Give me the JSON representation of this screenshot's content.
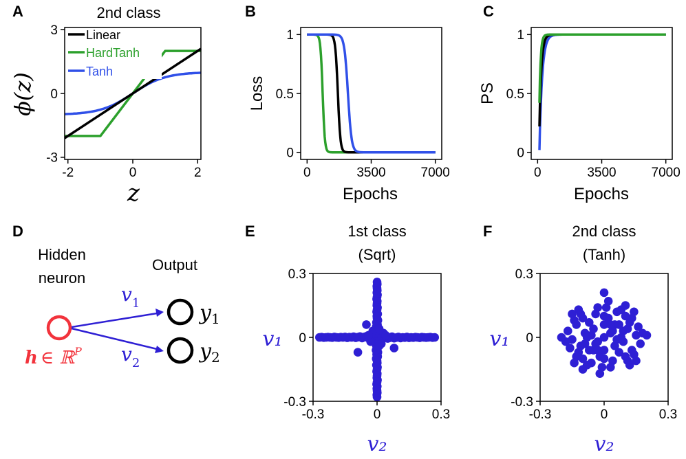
{
  "colors": {
    "linear": "#000000",
    "hardtanh": "#2ca02c",
    "tanh": "#3050e8",
    "points": "#2e1fd4",
    "hidden": "#f2333c",
    "math_blue": "#2e1fd4"
  },
  "chart_data": [
    {
      "panel": "A",
      "type": "line",
      "title": "2nd class",
      "xlabel": "z",
      "ylabel": "ϕ(z)",
      "xlim": [
        -2.1,
        2.1
      ],
      "ylim": [
        -3.1,
        3.1
      ],
      "xticks": [
        -2,
        0,
        2
      ],
      "yticks": [
        -3,
        0,
        3
      ],
      "xtick_labels": [
        "-2",
        "0",
        "2"
      ],
      "ytick_labels": [
        "-3",
        "0",
        "3"
      ],
      "legend": [
        "Linear",
        "HardTanh",
        "Tanh"
      ],
      "series": [
        {
          "name": "Linear",
          "x": [
            -2.1,
            2.1
          ],
          "y": [
            -2.1,
            2.1
          ]
        },
        {
          "name": "HardTanh",
          "x": [
            -2.1,
            -1,
            1,
            2.1
          ],
          "y": [
            -2,
            -2,
            2,
            2
          ]
        },
        {
          "name": "Tanh",
          "function": "tanh",
          "x_range": [
            -2.1,
            2.1
          ]
        }
      ]
    },
    {
      "panel": "B",
      "type": "line",
      "title": "",
      "xlabel": "Epochs",
      "ylabel": "Loss",
      "xlim": [
        -350,
        7350
      ],
      "ylim": [
        -0.06,
        1.06
      ],
      "xticks": [
        0,
        3500,
        7000
      ],
      "yticks": [
        0,
        0.5,
        1
      ],
      "xtick_labels": [
        "0",
        "3500",
        "7000"
      ],
      "ytick_labels": [
        "0",
        "0.5",
        "1"
      ],
      "series": [
        {
          "name": "HardTanh",
          "midpoint": 850,
          "width": 60,
          "x_range": [
            0,
            7000
          ]
        },
        {
          "name": "Linear",
          "midpoint": 1680,
          "width": 70,
          "x_range": [
            0,
            7000
          ]
        },
        {
          "name": "Tanh",
          "midpoint": 2230,
          "width": 100,
          "x_range": [
            0,
            7000
          ]
        }
      ]
    },
    {
      "panel": "C",
      "type": "line",
      "title": "",
      "xlabel": "Epochs",
      "ylabel": "PS",
      "xlim": [
        -350,
        7350
      ],
      "ylim": [
        -0.06,
        1.06
      ],
      "xticks": [
        0,
        3500,
        7000
      ],
      "yticks": [
        0,
        0.5,
        1
      ],
      "xtick_labels": [
        "0",
        "3500",
        "7000"
      ],
      "ytick_labels": [
        "0",
        "0.5",
        "1"
      ],
      "series": [
        {
          "name": "HardTanh",
          "start": 0.42,
          "tau": 70,
          "x_range": [
            100,
            7000
          ]
        },
        {
          "name": "Linear",
          "start": 0.22,
          "tau": 110,
          "x_range": [
            100,
            7000
          ]
        },
        {
          "name": "Tanh",
          "start": 0.02,
          "tau": 150,
          "x_range": [
            100,
            7000
          ]
        }
      ]
    },
    {
      "panel": "E",
      "type": "scatter",
      "title": "1st class",
      "subtitle": "(Sqrt)",
      "xlabel": "v₂",
      "ylabel": "v₁",
      "xlim": [
        -0.3,
        0.3
      ],
      "ylim": [
        -0.3,
        0.3
      ],
      "xticks": [
        -0.3,
        0,
        0.3
      ],
      "yticks": [
        -0.3,
        0,
        0.3
      ],
      "xtick_labels": [
        "-0.3",
        "0",
        "0.3"
      ],
      "ytick_labels": [
        "-0.3",
        "0",
        "0.3"
      ],
      "pattern": "cross",
      "points": [
        [
          -0.27,
          0.0
        ],
        [
          -0.26,
          0.001
        ],
        [
          -0.25,
          -0.001
        ],
        [
          -0.24,
          0.0
        ],
        [
          -0.23,
          0.001
        ],
        [
          -0.22,
          0.0
        ],
        [
          -0.21,
          -0.001
        ],
        [
          -0.2,
          0.002
        ],
        [
          -0.19,
          0.0
        ],
        [
          -0.18,
          -0.001
        ],
        [
          -0.17,
          0.001
        ],
        [
          -0.16,
          0.0
        ],
        [
          -0.15,
          0.002
        ],
        [
          -0.14,
          -0.002
        ],
        [
          -0.13,
          0.001
        ],
        [
          -0.12,
          0.0
        ],
        [
          -0.11,
          0.003
        ],
        [
          -0.1,
          -0.002
        ],
        [
          -0.09,
          0.001
        ],
        [
          -0.08,
          0.004
        ],
        [
          -0.07,
          -0.003
        ],
        [
          -0.06,
          0.002
        ],
        [
          -0.05,
          0.005
        ],
        [
          -0.04,
          -0.004
        ],
        [
          -0.03,
          0.003
        ],
        [
          -0.02,
          0.006
        ],
        [
          -0.01,
          -0.005
        ],
        [
          0.27,
          0.0
        ],
        [
          0.26,
          -0.001
        ],
        [
          0.25,
          0.001
        ],
        [
          0.24,
          0.0
        ],
        [
          0.23,
          -0.001
        ],
        [
          0.22,
          0.0
        ],
        [
          0.21,
          0.001
        ],
        [
          0.2,
          -0.002
        ],
        [
          0.19,
          0.0
        ],
        [
          0.18,
          0.001
        ],
        [
          0.17,
          -0.001
        ],
        [
          0.16,
          0.0
        ],
        [
          0.15,
          -0.002
        ],
        [
          0.14,
          0.002
        ],
        [
          0.13,
          -0.001
        ],
        [
          0.12,
          0.0
        ],
        [
          0.11,
          -0.003
        ],
        [
          0.1,
          0.002
        ],
        [
          0.09,
          -0.001
        ],
        [
          0.08,
          -0.004
        ],
        [
          0.07,
          0.003
        ],
        [
          0.06,
          -0.002
        ],
        [
          0.05,
          -0.005
        ],
        [
          0.04,
          0.004
        ],
        [
          0.03,
          -0.003
        ],
        [
          0.02,
          -0.006
        ],
        [
          0.01,
          0.005
        ],
        [
          0.0,
          0.26
        ],
        [
          0.001,
          0.25
        ],
        [
          -0.001,
          0.24
        ],
        [
          0.0,
          0.23
        ],
        [
          0.001,
          0.22
        ],
        [
          -0.001,
          0.21
        ],
        [
          0.002,
          0.2
        ],
        [
          0.0,
          0.19
        ],
        [
          -0.002,
          0.18
        ],
        [
          0.001,
          0.17
        ],
        [
          0.0,
          0.16
        ],
        [
          -0.001,
          0.15
        ],
        [
          0.002,
          0.14
        ],
        [
          0.0,
          0.13
        ],
        [
          -0.002,
          0.12
        ],
        [
          0.003,
          0.11
        ],
        [
          -0.001,
          0.1
        ],
        [
          0.0,
          0.09
        ],
        [
          0.004,
          0.08
        ],
        [
          -0.003,
          0.07
        ],
        [
          0.002,
          0.06
        ],
        [
          -0.004,
          0.05
        ],
        [
          0.005,
          0.04
        ],
        [
          -0.002,
          0.03
        ],
        [
          0.003,
          0.02
        ],
        [
          -0.005,
          0.01
        ],
        [
          0.0,
          -0.28
        ],
        [
          -0.001,
          -0.27
        ],
        [
          0.001,
          -0.26
        ],
        [
          0.0,
          -0.25
        ],
        [
          -0.001,
          -0.24
        ],
        [
          0.001,
          -0.23
        ],
        [
          -0.002,
          -0.22
        ],
        [
          0.0,
          -0.21
        ],
        [
          0.002,
          -0.2
        ],
        [
          -0.001,
          -0.19
        ],
        [
          0.0,
          -0.18
        ],
        [
          0.001,
          -0.17
        ],
        [
          -0.002,
          -0.16
        ],
        [
          0.0,
          -0.15
        ],
        [
          0.002,
          -0.14
        ],
        [
          -0.003,
          -0.13
        ],
        [
          0.001,
          -0.12
        ],
        [
          0.0,
          -0.11
        ],
        [
          -0.004,
          -0.1
        ],
        [
          0.003,
          -0.09
        ],
        [
          -0.002,
          -0.08
        ],
        [
          0.004,
          -0.07
        ],
        [
          -0.005,
          -0.06
        ],
        [
          0.002,
          -0.05
        ],
        [
          -0.003,
          -0.04
        ],
        [
          0.005,
          -0.03
        ],
        [
          -0.004,
          -0.02
        ],
        [
          0.003,
          -0.01
        ],
        [
          0.0,
          0.0
        ],
        [
          0.02,
          0.01
        ],
        [
          -0.02,
          -0.01
        ],
        [
          0.01,
          -0.02
        ],
        [
          -0.01,
          0.02
        ],
        [
          0.03,
          0.02
        ],
        [
          -0.03,
          -0.02
        ],
        [
          0.02,
          -0.03
        ],
        [
          -0.02,
          0.03
        ],
        [
          0.04,
          0.01
        ],
        [
          -0.04,
          0.01
        ],
        [
          0.01,
          0.04
        ],
        [
          0.01,
          -0.04
        ],
        [
          -0.09,
          -0.07
        ],
        [
          0.08,
          -0.05
        ],
        [
          -0.05,
          0.06
        ]
      ]
    },
    {
      "panel": "F",
      "type": "scatter",
      "title": "2nd class",
      "subtitle": "(Tanh)",
      "xlabel": "v₂",
      "ylabel": "v₁",
      "xlim": [
        -0.3,
        0.3
      ],
      "ylim": [
        -0.3,
        0.3
      ],
      "xticks": [
        -0.3,
        0,
        0.3
      ],
      "yticks": [
        -0.3,
        0,
        0.3
      ],
      "xtick_labels": [
        "-0.3",
        "0",
        "0.3"
      ],
      "ytick_labels": [
        "-0.3",
        "0",
        "0.3"
      ],
      "pattern": "blob",
      "points": [
        [
          0.0,
          0.0
        ],
        [
          0.03,
          0.02
        ],
        [
          -0.03,
          -0.02
        ],
        [
          0.05,
          -0.04
        ],
        [
          -0.05,
          0.04
        ],
        [
          0.07,
          0.06
        ],
        [
          -0.07,
          -0.06
        ],
        [
          0.09,
          -0.02
        ],
        [
          -0.09,
          0.02
        ],
        [
          0.02,
          0.09
        ],
        [
          -0.02,
          -0.09
        ],
        [
          0.11,
          0.04
        ],
        [
          -0.11,
          -0.04
        ],
        [
          0.04,
          -0.11
        ],
        [
          -0.04,
          0.11
        ],
        [
          0.13,
          -0.06
        ],
        [
          -0.13,
          0.06
        ],
        [
          0.06,
          0.12
        ],
        [
          -0.06,
          -0.12
        ],
        [
          0.15,
          0.01
        ],
        [
          -0.15,
          -0.01
        ],
        [
          0.01,
          0.14
        ],
        [
          -0.01,
          -0.14
        ],
        [
          0.1,
          0.1
        ],
        [
          -0.1,
          -0.1
        ],
        [
          0.1,
          -0.09
        ],
        [
          -0.1,
          0.09
        ],
        [
          0.16,
          0.05
        ],
        [
          -0.16,
          -0.05
        ],
        [
          0.14,
          -0.08
        ],
        [
          -0.14,
          0.08
        ],
        [
          0.08,
          0.13
        ],
        [
          -0.08,
          -0.13
        ],
        [
          0.12,
          0.07
        ],
        [
          -0.12,
          -0.07
        ],
        [
          0.03,
          -0.14
        ],
        [
          -0.03,
          0.14
        ],
        [
          0.17,
          -0.03
        ],
        [
          -0.17,
          0.03
        ],
        [
          0.05,
          0.06
        ],
        [
          -0.05,
          -0.06
        ],
        [
          0.07,
          -0.07
        ],
        [
          -0.07,
          0.07
        ],
        [
          0.09,
          0.03
        ],
        [
          -0.09,
          -0.03
        ],
        [
          0.11,
          -0.11
        ],
        [
          -0.11,
          0.11
        ],
        [
          0.13,
          0.09
        ],
        [
          -0.13,
          -0.09
        ],
        [
          0.02,
          0.17
        ],
        [
          -0.02,
          -0.17
        ],
        [
          0.18,
          0.02
        ],
        [
          -0.18,
          -0.02
        ],
        [
          0.04,
          0.03
        ],
        [
          -0.04,
          -0.03
        ],
        [
          0.06,
          -0.01
        ],
        [
          -0.06,
          0.01
        ],
        [
          0.0,
          0.06
        ],
        [
          0.0,
          -0.06
        ],
        [
          0.08,
          0.0
        ],
        [
          -0.08,
          0.0
        ],
        [
          0.0,
          0.1
        ],
        [
          0.0,
          -0.1
        ],
        [
          0.0,
          0.21
        ],
        [
          0.2,
          0.01
        ],
        [
          -0.2,
          0.0
        ],
        [
          0.14,
          0.12
        ],
        [
          -0.14,
          -0.12
        ],
        [
          0.12,
          -0.13
        ],
        [
          -0.12,
          0.13
        ],
        [
          0.03,
          0.06
        ],
        [
          -0.03,
          -0.06
        ],
        [
          0.15,
          -0.11
        ],
        [
          -0.15,
          0.11
        ],
        [
          0.1,
          0.15
        ],
        [
          -0.1,
          -0.15
        ]
      ]
    }
  ],
  "panels": {
    "A": "A",
    "B": "B",
    "C": "C",
    "D": "D",
    "E": "E",
    "F": "F"
  },
  "diagram": {
    "hidden_label_line1": "Hidden",
    "hidden_label_line2": "neuron",
    "output_label": "Output",
    "hidden_vector_h": "h",
    "hidden_vector_rest": "∈ ℝ",
    "hidden_vector_sup": "P",
    "weight_1": "v",
    "weight_1_sub": "1",
    "weight_2": "v",
    "weight_2_sub": "2",
    "output_1": "y",
    "output_1_sub": "1",
    "output_2": "y",
    "output_2_sub": "2"
  }
}
